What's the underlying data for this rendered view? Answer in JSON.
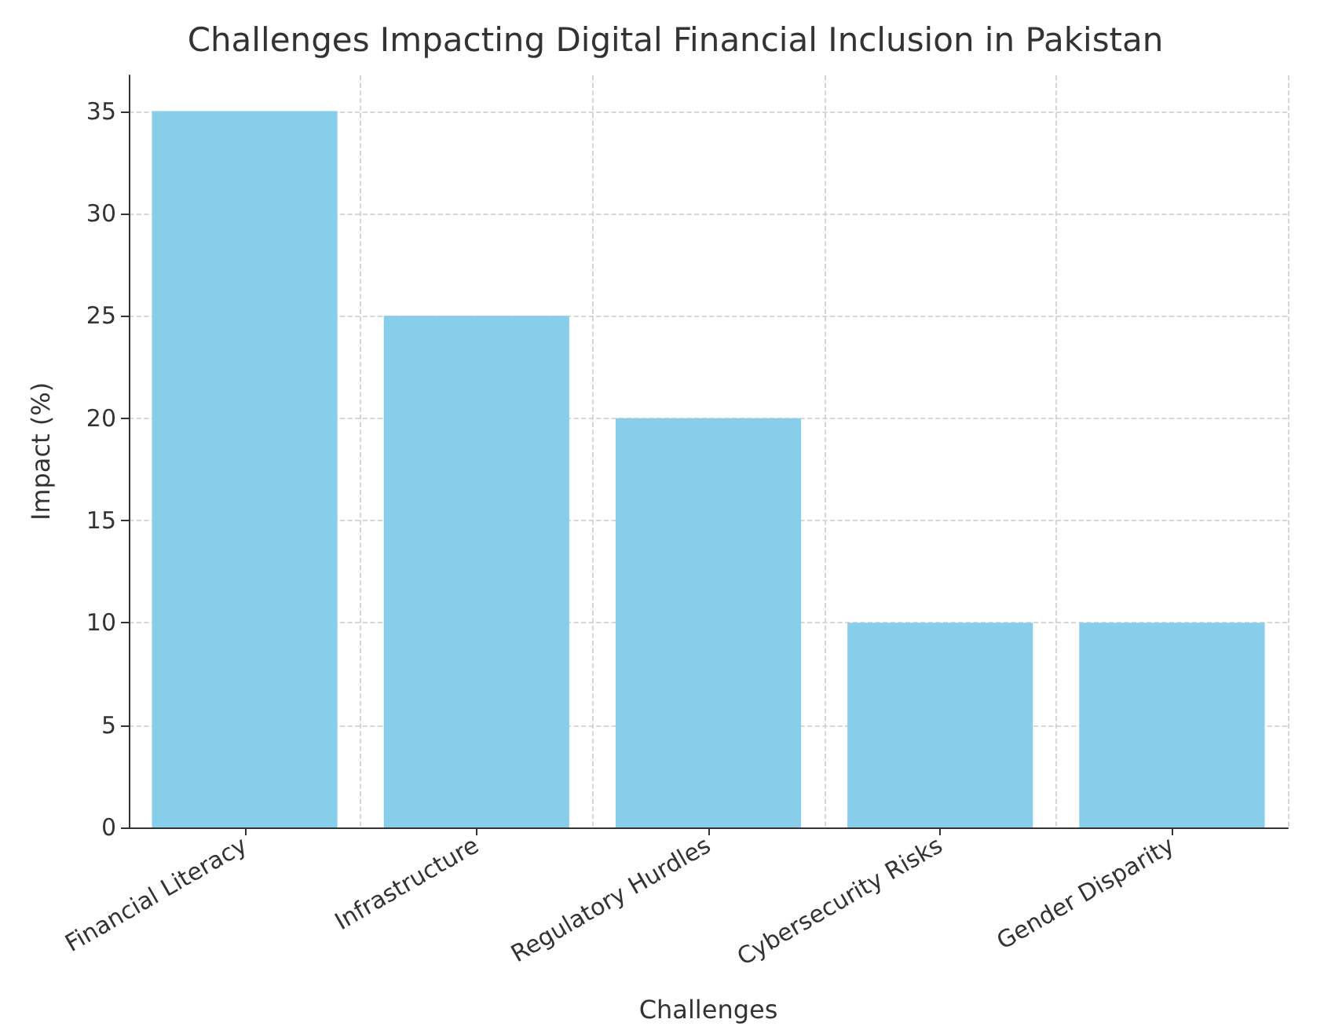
{
  "chart_data": {
    "type": "bar",
    "title": "Challenges Impacting Digital Financial Inclusion in Pakistan",
    "xlabel": "Challenges",
    "ylabel": "Impact (%)",
    "categories": [
      "Financial Literacy",
      "Infrastructure",
      "Regulatory Hurdles",
      "Cybersecurity Risks",
      "Gender Disparity"
    ],
    "values": [
      35,
      25,
      20,
      10,
      10
    ],
    "color": "#87ceeb",
    "ylim": [
      0,
      36.75
    ],
    "yticks": [
      0,
      5,
      10,
      15,
      20,
      25,
      30,
      35
    ],
    "grid": true
  }
}
